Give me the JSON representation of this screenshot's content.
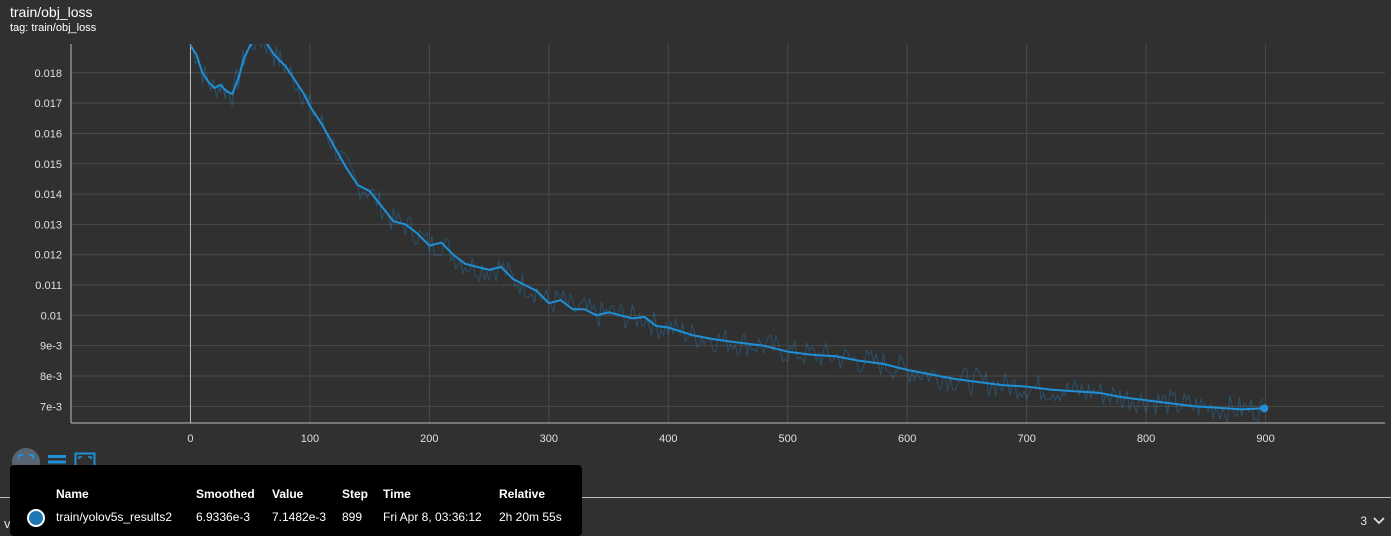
{
  "card": {
    "title": "train/obj_loss",
    "tag": "tag: train/obj_loss"
  },
  "chart_data": {
    "type": "line",
    "xlim": [
      -100,
      1000
    ],
    "ylim": [
      0.00645,
      0.01895
    ],
    "x_ticks": [
      "0",
      "100",
      "200",
      "300",
      "400",
      "500",
      "600",
      "700",
      "800",
      "900"
    ],
    "y_ticks": [
      "0.018",
      "0.017",
      "0.016",
      "0.015",
      "0.014",
      "0.013",
      "0.012",
      "0.011",
      "0.01",
      "9e-3",
      "8e-3",
      "7e-3"
    ],
    "grid": true,
    "series": [
      {
        "name": "train/yolov5s_results2",
        "color": "#1f8fd6",
        "x": [
          0,
          5,
          10,
          15,
          20,
          25,
          30,
          35,
          40,
          45,
          50,
          55,
          60,
          65,
          70,
          75,
          80,
          85,
          90,
          95,
          100,
          110,
          120,
          130,
          140,
          150,
          160,
          170,
          180,
          190,
          200,
          210,
          220,
          230,
          240,
          250,
          260,
          270,
          280,
          290,
          300,
          310,
          320,
          330,
          340,
          350,
          360,
          370,
          380,
          390,
          400,
          420,
          440,
          460,
          480,
          500,
          520,
          540,
          560,
          580,
          600,
          620,
          640,
          660,
          680,
          700,
          720,
          740,
          760,
          780,
          800,
          820,
          840,
          860,
          880,
          899
        ],
        "y": [
          0.0189,
          0.0186,
          0.018,
          0.0177,
          0.0175,
          0.0176,
          0.0174,
          0.0173,
          0.0178,
          0.0185,
          0.0189,
          0.0191,
          0.0191,
          0.0189,
          0.0186,
          0.0184,
          0.0182,
          0.0179,
          0.0176,
          0.0173,
          0.0169,
          0.0163,
          0.0156,
          0.0149,
          0.0143,
          0.0141,
          0.0136,
          0.0131,
          0.013,
          0.0127,
          0.0123,
          0.0124,
          0.012,
          0.0117,
          0.0116,
          0.0115,
          0.0116,
          0.0112,
          0.011,
          0.0108,
          0.0104,
          0.0105,
          0.0102,
          0.0102,
          0.01,
          0.0101,
          0.01,
          0.0099,
          0.00995,
          0.00965,
          0.0096,
          0.00935,
          0.0092,
          0.0091,
          0.009,
          0.0088,
          0.0087,
          0.00865,
          0.0085,
          0.0084,
          0.0082,
          0.00805,
          0.0079,
          0.0078,
          0.0077,
          0.00765,
          0.00755,
          0.0075,
          0.00745,
          0.0073,
          0.0072,
          0.0071,
          0.007,
          0.00695,
          0.0069,
          0.0069336
        ]
      }
    ]
  },
  "tooltip": {
    "headers": [
      "Name",
      "Smoothed",
      "Value",
      "Step",
      "Time",
      "Relative"
    ],
    "row": {
      "name": "train/yolov5s_results2",
      "smoothed": "6.9336e-3",
      "value": "7.1482e-3",
      "step": "899",
      "time": "Fri Apr 8, 03:36:12",
      "relative": "2h 20m 55s"
    }
  },
  "footer": {
    "label": "val",
    "count": "3"
  }
}
